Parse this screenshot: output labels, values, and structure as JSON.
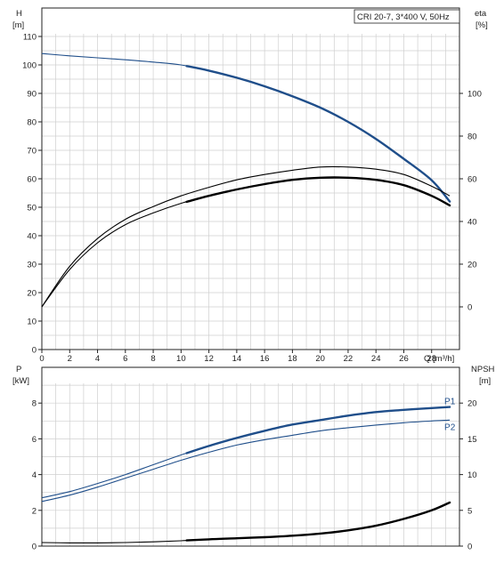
{
  "chart_data": [
    {
      "type": "line",
      "legend_box": "CRI 20-7, 3*400 V, 50Hz",
      "xlabel": "Q [m³/h]",
      "xlim": [
        0,
        30
      ],
      "x_ticks": [
        0,
        2,
        4,
        6,
        8,
        10,
        12,
        14,
        16,
        18,
        20,
        22,
        24,
        26,
        28
      ],
      "y_left": {
        "label_line1": "H",
        "label_line2": "[m]",
        "lim": [
          0,
          120
        ],
        "ticks": [
          0,
          10,
          20,
          30,
          40,
          50,
          60,
          70,
          80,
          90,
          100,
          110
        ]
      },
      "y_right": {
        "label_line1": "eta",
        "label_line2": "[%]",
        "lim": [
          -20,
          140
        ],
        "ticks": [
          0,
          20,
          40,
          60,
          80,
          100
        ]
      },
      "grid": true,
      "series": [
        {
          "axis": "left",
          "color": "#1f4e8a",
          "x": [
            0,
            2,
            4,
            6,
            8,
            10,
            12,
            14,
            16,
            18,
            20,
            22,
            24,
            26,
            28,
            29.3
          ],
          "y": [
            104,
            103.2,
            102.5,
            101.8,
            101,
            100,
            98,
            95.5,
            92.5,
            89,
            85,
            80,
            74,
            67,
            59.5,
            52
          ],
          "bold_from": 10.4
        },
        {
          "axis": "right",
          "color": "#000000",
          "x": [
            0,
            2,
            4,
            6,
            8,
            10,
            12,
            14,
            16,
            18,
            20,
            22,
            24,
            26,
            28,
            29.3
          ],
          "y": [
            0,
            19,
            32,
            41,
            47,
            52,
            56,
            59.5,
            62,
            64,
            65.5,
            65.5,
            64.5,
            62,
            56.5,
            52
          ],
          "bold_from": 29.3
        },
        {
          "axis": "right",
          "color": "#000000",
          "x": [
            0,
            2,
            4,
            6,
            8,
            10,
            12,
            14,
            16,
            18,
            20,
            22,
            24,
            26,
            28,
            29.3
          ],
          "y": [
            0,
            17.5,
            30,
            38.5,
            44,
            48.5,
            52,
            55,
            57.5,
            59.5,
            60.5,
            60.5,
            59.5,
            57,
            52,
            47.5
          ],
          "bold_from": 10.4
        }
      ]
    },
    {
      "type": "line",
      "xlim": [
        0,
        30
      ],
      "y_left": {
        "label_line1": "P",
        "label_line2": "[kW]",
        "lim": [
          0,
          10
        ],
        "ticks": [
          0,
          2,
          4,
          6,
          8
        ]
      },
      "y_right": {
        "label_line1": "NPSH",
        "label_line2": "[m]",
        "lim": [
          0,
          25
        ],
        "ticks": [
          0,
          5,
          10,
          15,
          20
        ]
      },
      "grid": true,
      "series": [
        {
          "name": "P1",
          "axis": "left",
          "color": "#1f4e8a",
          "x": [
            0,
            2,
            4,
            6,
            8,
            10,
            12,
            14,
            16,
            18,
            20,
            22,
            24,
            26,
            28,
            29.3
          ],
          "y": [
            2.7,
            3.05,
            3.5,
            4.0,
            4.55,
            5.1,
            5.6,
            6.05,
            6.45,
            6.8,
            7.05,
            7.3,
            7.5,
            7.62,
            7.72,
            7.78
          ],
          "bold_from": 10.4
        },
        {
          "name": "P2",
          "axis": "left",
          "color": "#1f4e8a",
          "x": [
            0,
            2,
            4,
            6,
            8,
            10,
            12,
            14,
            16,
            18,
            20,
            22,
            24,
            26,
            28,
            29.3
          ],
          "y": [
            2.5,
            2.85,
            3.3,
            3.8,
            4.3,
            4.8,
            5.25,
            5.65,
            5.95,
            6.2,
            6.45,
            6.62,
            6.77,
            6.9,
            7.0,
            7.05
          ],
          "bold_from": 99
        },
        {
          "axis": "right",
          "color": "#000000",
          "x": [
            0,
            2,
            4,
            6,
            8,
            10,
            12,
            14,
            16,
            18,
            20,
            22,
            24,
            26,
            28,
            29.3
          ],
          "y": [
            0.5,
            0.45,
            0.45,
            0.5,
            0.6,
            0.75,
            0.95,
            1.1,
            1.25,
            1.45,
            1.75,
            2.2,
            2.85,
            3.8,
            5.0,
            6.1
          ],
          "bold_from": 10.4
        }
      ]
    }
  ],
  "colors": {
    "grid": "#cfcfcf",
    "frame": "#222222",
    "pump_blue": "#1f4e8a"
  }
}
